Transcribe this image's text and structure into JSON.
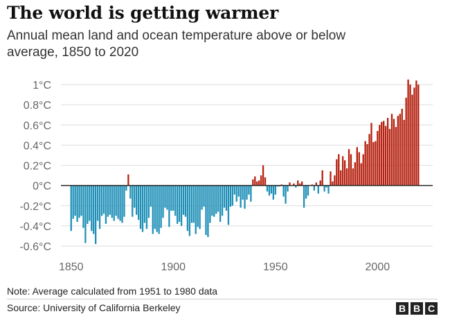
{
  "header": {
    "title": "The world is getting warmer",
    "subtitle": "Annual mean land and ocean temperature above or below average, 1850 to 2020"
  },
  "footer": {
    "note": "Note: Average calculated from 1951 to 1980 data",
    "source": "Source: University of California Berkeley",
    "logo_letters": [
      "B",
      "B",
      "C"
    ]
  },
  "chart_data": {
    "type": "bar",
    "title": "The world is getting warmer",
    "subtitle": "Annual mean land and ocean temperature above or below average, 1850 to 2020",
    "xlabel": "",
    "ylabel": "",
    "x_start": 1850,
    "x_end": 2020,
    "xlim": [
      1845,
      2027
    ],
    "ylim": [
      -0.6,
      1.0
    ],
    "grid": true,
    "legend": "none",
    "y_ticks": [
      "1°C",
      "0.8°C",
      "0.6°C",
      "0.4°C",
      "0.2°C",
      "0°C",
      "-0.2°C",
      "-0.4°C",
      "-0.6°C"
    ],
    "y_tick_values": [
      1.0,
      0.8,
      0.6,
      0.4,
      0.2,
      0.0,
      -0.2,
      -0.4,
      -0.6
    ],
    "x_ticks": [
      "1850",
      "1900",
      "1950",
      "2000"
    ],
    "x_tick_values": [
      1850,
      1900,
      1950,
      2000
    ],
    "colors": {
      "positive": "#b5200f",
      "negative": "#1e8fb7",
      "zero_line": "#222222",
      "grid": "#dddddd"
    },
    "values": [
      -0.45,
      -0.33,
      -0.3,
      -0.36,
      -0.32,
      -0.3,
      -0.42,
      -0.57,
      -0.38,
      -0.35,
      -0.45,
      -0.48,
      -0.58,
      -0.35,
      -0.43,
      -0.3,
      -0.28,
      -0.38,
      -0.31,
      -0.29,
      -0.32,
      -0.35,
      -0.3,
      -0.33,
      -0.35,
      -0.37,
      -0.31,
      -0.05,
      0.11,
      -0.13,
      -0.31,
      -0.22,
      -0.29,
      -0.34,
      -0.43,
      -0.46,
      -0.37,
      -0.43,
      -0.32,
      -0.21,
      -0.48,
      -0.43,
      -0.46,
      -0.48,
      -0.42,
      -0.32,
      -0.22,
      -0.24,
      -0.41,
      -0.25,
      -0.25,
      -0.3,
      -0.38,
      -0.36,
      -0.4,
      -0.29,
      -0.31,
      -0.45,
      -0.5,
      -0.37,
      -0.37,
      -0.48,
      -0.41,
      -0.43,
      -0.24,
      -0.21,
      -0.49,
      -0.51,
      -0.37,
      -0.3,
      -0.31,
      -0.28,
      -0.26,
      -0.36,
      -0.3,
      -0.22,
      -0.25,
      -0.39,
      -0.21,
      -0.2,
      -0.09,
      -0.16,
      -0.11,
      -0.22,
      -0.14,
      -0.23,
      -0.14,
      -0.09,
      -0.16,
      0.06,
      0.09,
      0.04,
      0.05,
      0.1,
      0.2,
      0.08,
      -0.06,
      -0.1,
      -0.08,
      -0.14,
      -0.09,
      -0.01,
      -0.01,
      0.01,
      -0.11,
      -0.18,
      -0.06,
      0.03,
      0.0,
      0.02,
      -0.02,
      0.05,
      0.02,
      0.04,
      -0.22,
      -0.13,
      -0.1,
      0.0,
      0.01,
      -0.05,
      0.03,
      -0.08,
      0.05,
      0.15,
      -0.06,
      -0.02,
      -0.08,
      0.14,
      0.04,
      0.1,
      0.26,
      0.31,
      0.15,
      0.29,
      0.25,
      0.17,
      0.36,
      0.31,
      0.17,
      0.23,
      0.38,
      0.33,
      0.22,
      0.31,
      0.44,
      0.41,
      0.51,
      0.62,
      0.43,
      0.44,
      0.54,
      0.6,
      0.63,
      0.64,
      0.59,
      0.67,
      0.56,
      0.71,
      0.66,
      0.58,
      0.69,
      0.71,
      0.76,
      0.65,
      0.87,
      1.05,
      1.0,
      0.9,
      0.97,
      1.04,
      1.0
    ]
  }
}
